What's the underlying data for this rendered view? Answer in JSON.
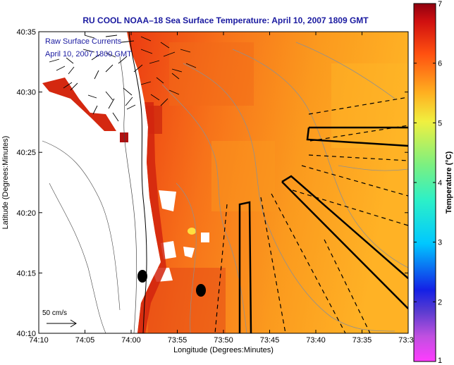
{
  "title": "RU COOL  NOAA–18  Sea Surface Temperature:  April 10, 2007 1809 GMT",
  "legend": {
    "line1": "Raw Surface Currents",
    "line2": "April 10, 2007 1800 GMT"
  },
  "scale_label": "50 cm/s",
  "axes": {
    "xlabel": "Longitude (Degrees:Minutes)",
    "ylabel": "Latitude (Degrees:Minutes)",
    "xticks": [
      "74:10",
      "74:05",
      "74:00",
      "73:55",
      "73:50",
      "73:45",
      "73:40",
      "73:35",
      "73:3"
    ],
    "yticks": [
      "40:35",
      "40:30",
      "40:25",
      "40:20",
      "40:15",
      "40:10"
    ]
  },
  "colorbar": {
    "label": "Temperature (°C)",
    "ticks": [
      "7",
      "6",
      "5",
      "4",
      "3",
      "2",
      "1"
    ],
    "min": 1,
    "max": 7
  },
  "colors": {
    "title": "#1a1aa0",
    "land": "#ffffff",
    "sst_warm": "#e03010",
    "sst_cool": "#ffb020"
  }
}
